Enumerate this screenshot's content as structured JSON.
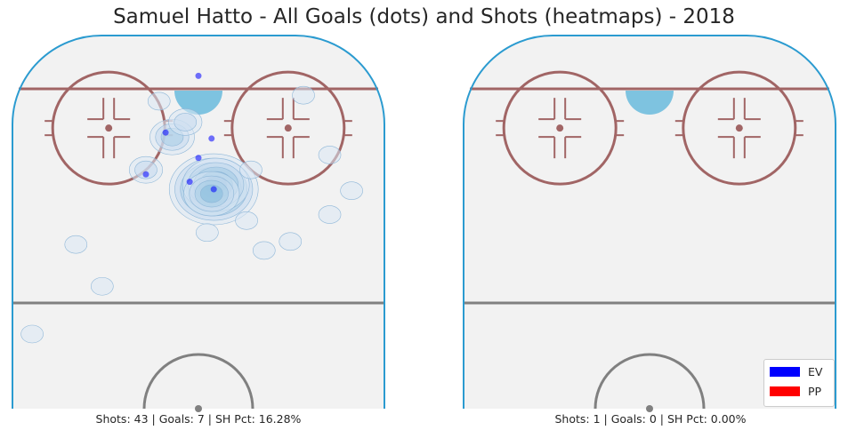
{
  "chart_data": {
    "type": "scatter",
    "title": "Samuel Hatto - All Goals (dots) and Shots (heatmaps) - 2018",
    "panels": [
      {
        "caption": "Shots: 43 | Goals: 7 | SH Pct: 16.28%",
        "goals": [
          {
            "x": 0.0,
            "y": 86.5,
            "strength": "EV"
          },
          {
            "x": -7.5,
            "y": 67.5,
            "strength": "EV"
          },
          {
            "x": 3.0,
            "y": 65.5,
            "strength": "EV"
          },
          {
            "x": 0.0,
            "y": 59.0,
            "strength": "EV"
          },
          {
            "x": -12.0,
            "y": 53.5,
            "strength": "EV"
          },
          {
            "x": -2.0,
            "y": 51.0,
            "strength": "EV"
          },
          {
            "x": 3.5,
            "y": 48.5,
            "strength": "EV"
          }
        ],
        "shots_heatmap": [
          {
            "x": 3.5,
            "y": 48.5,
            "level": 7
          },
          {
            "x": 4.0,
            "y": 50.0,
            "level": 5
          },
          {
            "x": 3.0,
            "y": 47.0,
            "level": 4
          },
          {
            "x": -6.0,
            "y": 66.0,
            "level": 3
          },
          {
            "x": -3.0,
            "y": 71.0,
            "level": 2
          },
          {
            "x": -12.0,
            "y": 55.0,
            "level": 2
          },
          {
            "x": -9.0,
            "y": 78.0,
            "level": 1
          },
          {
            "x": 12.0,
            "y": 55.0,
            "level": 1
          },
          {
            "x": 30.0,
            "y": 60.0,
            "level": 1
          },
          {
            "x": 30.0,
            "y": 40.0,
            "level": 1
          },
          {
            "x": 15.0,
            "y": 28.0,
            "level": 1
          },
          {
            "x": -22.0,
            "y": 16.0,
            "level": 1
          },
          {
            "x": -28.0,
            "y": 30.0,
            "level": 1
          },
          {
            "x": 2.0,
            "y": 34.0,
            "level": 1
          },
          {
            "x": 21.0,
            "y": 31.0,
            "level": 1
          },
          {
            "x": 11.0,
            "y": 38.0,
            "level": 1
          },
          {
            "x": 24.0,
            "y": 80.0,
            "level": 1
          },
          {
            "x": 35.0,
            "y": 48.0,
            "level": 1
          },
          {
            "x": -38.0,
            "y": 0.0,
            "level": 1
          }
        ]
      },
      {
        "caption": "Shots: 1 | Goals: 0 | SH Pct: 0.00%",
        "goals": [],
        "shots_heatmap": []
      }
    ],
    "legend": {
      "placement": "lower-right",
      "entries": [
        {
          "label": "EV",
          "color": "#0000ff"
        },
        {
          "label": "PP",
          "color": "#ff0000"
        }
      ]
    },
    "xlim": [
      -42.5,
      42.5
    ],
    "ylim": [
      -25,
      100
    ]
  }
}
